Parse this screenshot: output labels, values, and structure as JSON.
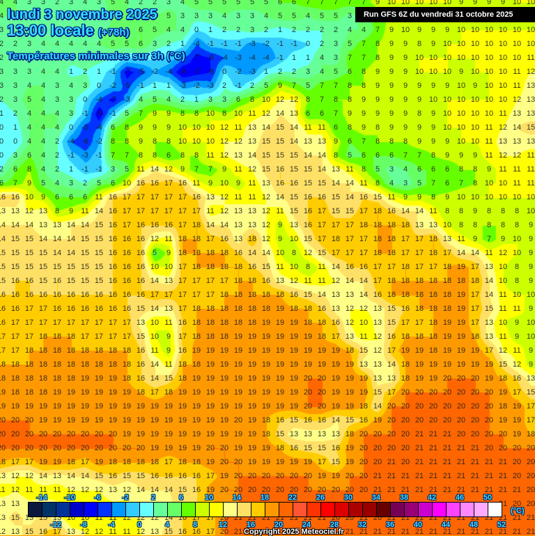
{
  "header": {
    "date": "lundi 3 novembre 2025",
    "time": "13:00 locale",
    "lead": "(+78h)",
    "parameter": "Températures minimales sur 3h (°C)",
    "run": "Run GFS 6Z du vendredi 31 octobre 2025"
  },
  "legend": {
    "unit": "(°C)",
    "colors": [
      "#0a1840",
      "#003366",
      "#003399",
      "#0000cc",
      "#0000ff",
      "#0033ff",
      "#0099ff",
      "#33ccff",
      "#66ffff",
      "#66ff99",
      "#66ff66",
      "#66ff00",
      "#ccff00",
      "#ffff00",
      "#ffff88",
      "#ffe066",
      "#ffcc00",
      "#ff9900",
      "#ff6600",
      "#ff5533",
      "#ff3300",
      "#ff0000",
      "#dd0000",
      "#aa0000",
      "#990000",
      "#660000",
      "#770055",
      "#990077",
      "#cc00cc",
      "#ff00ff",
      "#ff44ff",
      "#ff88ff",
      "#ffaaff",
      "#ffffff"
    ],
    "top_labels": [
      "-14",
      "-10",
      "-6",
      "-2",
      "2",
      "6",
      "10",
      "14",
      "18",
      "22",
      "26",
      "30",
      "34",
      "38",
      "42",
      "46",
      "50"
    ],
    "bottom_labels": [
      "-12",
      "-8",
      "-4",
      "0",
      "4",
      "8",
      "12",
      "16",
      "20",
      "24",
      "28",
      "32",
      "36",
      "40",
      "44",
      "48",
      "52"
    ]
  },
  "copyright": "Copyright 2025 Meteociel.fr",
  "grid_values": [
    [
      4,
      4,
      3,
      3,
      2,
      3,
      4,
      3,
      5,
      4,
      2,
      2,
      3,
      4,
      5,
      5,
      5,
      5,
      5,
      5,
      6,
      6,
      7,
      7,
      7,
      7,
      7,
      9,
      10,
      10,
      10,
      10,
      10,
      9,
      9,
      9,
      9,
      10,
      10
    ],
    [
      4,
      null,
      null,
      null,
      null,
      null,
      null,
      null,
      null,
      null,
      null,
      null,
      5,
      3,
      3,
      3,
      4,
      3,
      3,
      4,
      5,
      5,
      4,
      5,
      5,
      3,
      null,
      null,
      null,
      null,
      null,
      null,
      null,
      null,
      null,
      null,
      null,
      null,
      null
    ],
    [
      3,
      null,
      null,
      null,
      null,
      null,
      null,
      null,
      null,
      null,
      6,
      5,
      4,
      4,
      0,
      1,
      2,
      2,
      3,
      2,
      1,
      2,
      2,
      2,
      2,
      4,
      4,
      7,
      9,
      10,
      9,
      9,
      9,
      10,
      10,
      10,
      10,
      10,
      10
    ],
    [
      2,
      2,
      3,
      4,
      4,
      4,
      4,
      4,
      5,
      5,
      6,
      3,
      2,
      1,
      -4,
      -1,
      -1,
      -1,
      -3,
      -2,
      -1,
      -1,
      0,
      2,
      3,
      5,
      7,
      8,
      9,
      9,
      8,
      9,
      10,
      10,
      10,
      10,
      10,
      10,
      10
    ],
    [
      2,
      null,
      null,
      null,
      null,
      null,
      null,
      null,
      null,
      null,
      null,
      null,
      null,
      null,
      -7,
      -6,
      -4,
      -3,
      -4,
      -4,
      -1,
      1,
      1,
      4,
      3,
      7,
      7,
      8,
      9,
      9,
      10,
      10,
      10,
      10,
      10,
      10,
      10,
      10,
      11
    ],
    [
      3,
      3,
      3,
      4,
      4,
      1,
      2,
      1,
      -1,
      -7,
      -5,
      -2,
      -4,
      -8,
      -7,
      -6,
      0,
      -2,
      -3,
      1,
      2,
      2,
      3,
      4,
      5,
      6,
      8,
      9,
      9,
      9,
      10,
      10,
      10,
      9,
      10,
      10,
      10,
      11,
      12
    ],
    [
      3,
      3,
      4,
      4,
      3,
      4,
      3,
      0,
      -2,
      -5,
      -1,
      1,
      1,
      -3,
      -2,
      -3,
      2,
      -1,
      2,
      5,
      9,
      7,
      5,
      7,
      7,
      8,
      8,
      9,
      9,
      9,
      9,
      9,
      9,
      10,
      9,
      10,
      10,
      11,
      13
    ],
    [
      2,
      3,
      5,
      4,
      3,
      3,
      0,
      -4,
      -7,
      -3,
      4,
      5,
      4,
      2,
      1,
      3,
      3,
      6,
      8,
      10,
      12,
      12,
      8,
      7,
      8,
      8,
      9,
      9,
      9,
      9,
      9,
      10,
      10,
      10,
      10,
      10,
      10,
      12,
      13
    ],
    [
      1,
      2,
      4,
      4,
      4,
      3,
      -1,
      -8,
      -1,
      5,
      7,
      9,
      9,
      8,
      8,
      10,
      8,
      10,
      11,
      12,
      14,
      13,
      6,
      6,
      7,
      9,
      9,
      9,
      9,
      9,
      8,
      9,
      10,
      10,
      10,
      10,
      11,
      13,
      13
    ],
    [
      0,
      1,
      4,
      4,
      4,
      0,
      -5,
      -4,
      6,
      8,
      9,
      9,
      9,
      10,
      10,
      10,
      12,
      11,
      13,
      14,
      15,
      14,
      11,
      11,
      6,
      8,
      9,
      8,
      9,
      9,
      9,
      9,
      10,
      10,
      10,
      11,
      12,
      14,
      15
    ],
    [
      0,
      0,
      4,
      4,
      2,
      -4,
      -6,
      -2,
      8,
      8,
      9,
      8,
      8,
      10,
      10,
      10,
      12,
      12,
      13,
      15,
      15,
      14,
      13,
      13,
      9,
      6,
      7,
      8,
      8,
      8,
      9,
      9,
      9,
      10,
      10,
      11,
      13,
      13,
      13
    ],
    [
      0,
      3,
      6,
      4,
      2,
      -1,
      -3,
      -1,
      7,
      7,
      8,
      8,
      6,
      8,
      8,
      11,
      12,
      13,
      14,
      15,
      15,
      15,
      14,
      14,
      8,
      5,
      6,
      6,
      6,
      7,
      7,
      8,
      9,
      9,
      9,
      11,
      12,
      12,
      11
    ],
    [
      2,
      6,
      8,
      4,
      2,
      1,
      -1,
      -1,
      3,
      5,
      11,
      14,
      12,
      9,
      7,
      7,
      9,
      11,
      12,
      15,
      16,
      15,
      15,
      14,
      13,
      11,
      8,
      5,
      3,
      4,
      6,
      6,
      6,
      8,
      8,
      9,
      11,
      11,
      11
    ],
    [
      6,
      7,
      9,
      5,
      4,
      3,
      2,
      5,
      6,
      10,
      16,
      16,
      17,
      16,
      11,
      9,
      10,
      9,
      11,
      13,
      16,
      16,
      15,
      15,
      14,
      14,
      11,
      8,
      4,
      3,
      5,
      7,
      6,
      7,
      8,
      10,
      10,
      11,
      11
    ],
    [
      16,
      16,
      10,
      9,
      6,
      6,
      6,
      11,
      16,
      17,
      17,
      17,
      17,
      17,
      16,
      13,
      12,
      11,
      11,
      12,
      14,
      15,
      16,
      16,
      15,
      14,
      16,
      15,
      11,
      9,
      9,
      8,
      9,
      10,
      10,
      10,
      10,
      10,
      10
    ],
    [
      13,
      13,
      12,
      13,
      8,
      9,
      11,
      14,
      16,
      17,
      17,
      17,
      17,
      17,
      17,
      11,
      12,
      13,
      13,
      12,
      11,
      15,
      16,
      17,
      15,
      15,
      17,
      18,
      16,
      14,
      14,
      11,
      8,
      8,
      9,
      8,
      8,
      8,
      10
    ],
    [
      14,
      14,
      14,
      13,
      13,
      14,
      14,
      15,
      16,
      17,
      16,
      16,
      16,
      17,
      18,
      14,
      14,
      13,
      13,
      12,
      9,
      13,
      16,
      17,
      17,
      17,
      18,
      18,
      18,
      18,
      13,
      13,
      10,
      8,
      8,
      8,
      8,
      8,
      9
    ],
    [
      14,
      15,
      15,
      14,
      14,
      14,
      15,
      15,
      16,
      16,
      16,
      12,
      11,
      18,
      18,
      17,
      16,
      13,
      18,
      12,
      9,
      10,
      15,
      17,
      18,
      17,
      17,
      18,
      18,
      17,
      17,
      18,
      13,
      11,
      9,
      7,
      9,
      10,
      9
    ],
    [
      15,
      15,
      15,
      15,
      14,
      14,
      15,
      15,
      16,
      16,
      16,
      5,
      9,
      18,
      18,
      18,
      18,
      16,
      14,
      14,
      10,
      8,
      12,
      15,
      17,
      17,
      17,
      18,
      18,
      17,
      17,
      18,
      17,
      14,
      14,
      11,
      12,
      10,
      9
    ],
    [
      15,
      15,
      15,
      15,
      15,
      15,
      15,
      15,
      16,
      16,
      16,
      10,
      10,
      17,
      18,
      18,
      18,
      18,
      16,
      15,
      11,
      10,
      8,
      11,
      14,
      16,
      16,
      17,
      17,
      18,
      17,
      17,
      18,
      19,
      17,
      13,
      10,
      8,
      9
    ],
    [
      15,
      16,
      16,
      15,
      16,
      15,
      15,
      15,
      16,
      16,
      16,
      14,
      13,
      17,
      17,
      17,
      17,
      18,
      18,
      16,
      13,
      12,
      11,
      11,
      12,
      14,
      14,
      17,
      18,
      18,
      18,
      18,
      18,
      18,
      18,
      14,
      10,
      8,
      9
    ],
    [
      16,
      16,
      16,
      16,
      16,
      16,
      16,
      16,
      16,
      16,
      16,
      17,
      17,
      17,
      17,
      17,
      18,
      18,
      18,
      18,
      18,
      16,
      15,
      14,
      13,
      13,
      14,
      16,
      18,
      18,
      18,
      18,
      18,
      19,
      17,
      14,
      11,
      10,
      10
    ],
    [
      16,
      16,
      17,
      17,
      16,
      16,
      16,
      16,
      16,
      16,
      15,
      14,
      13,
      17,
      18,
      18,
      18,
      18,
      18,
      18,
      19,
      18,
      18,
      16,
      13,
      12,
      12,
      13,
      15,
      16,
      18,
      18,
      18,
      19,
      17,
      15,
      11,
      11,
      9
    ],
    [
      16,
      17,
      17,
      17,
      17,
      17,
      17,
      17,
      17,
      17,
      13,
      10,
      11,
      16,
      18,
      18,
      18,
      18,
      18,
      19,
      19,
      19,
      18,
      18,
      16,
      12,
      10,
      13,
      15,
      17,
      17,
      18,
      19,
      19,
      17,
      13,
      10,
      9,
      10
    ],
    [
      17,
      17,
      17,
      18,
      18,
      18,
      17,
      17,
      17,
      17,
      15,
      10,
      9,
      17,
      18,
      18,
      18,
      19,
      19,
      19,
      19,
      19,
      19,
      18,
      17,
      13,
      11,
      12,
      16,
      18,
      18,
      18,
      19,
      19,
      18,
      13,
      11,
      9,
      10
    ],
    [
      17,
      17,
      18,
      18,
      18,
      18,
      18,
      18,
      18,
      18,
      16,
      11,
      9,
      16,
      19,
      19,
      19,
      19,
      19,
      19,
      19,
      19,
      19,
      19,
      19,
      18,
      15,
      12,
      17,
      19,
      19,
      18,
      19,
      19,
      19,
      17,
      12,
      11,
      9
    ],
    [
      18,
      18,
      18,
      18,
      18,
      18,
      18,
      18,
      18,
      18,
      16,
      14,
      11,
      18,
      18,
      19,
      19,
      19,
      19,
      19,
      19,
      19,
      19,
      19,
      19,
      19,
      13,
      13,
      14,
      18,
      19,
      19,
      19,
      19,
      19,
      19,
      15,
      12,
      9
    ],
    [
      18,
      18,
      18,
      18,
      18,
      18,
      19,
      19,
      19,
      18,
      16,
      14,
      15,
      18,
      19,
      19,
      19,
      19,
      19,
      19,
      19,
      19,
      20,
      20,
      19,
      19,
      19,
      13,
      13,
      18,
      19,
      19,
      20,
      20,
      20,
      19,
      18,
      16,
      13
    ],
    [
      19,
      18,
      18,
      18,
      19,
      19,
      19,
      19,
      19,
      19,
      18,
      17,
      18,
      19,
      19,
      19,
      19,
      19,
      19,
      19,
      19,
      19,
      20,
      20,
      19,
      19,
      19,
      15,
      17,
      20,
      20,
      20,
      20,
      20,
      20,
      20,
      19,
      17,
      15
    ],
    [
      19,
      19,
      19,
      19,
      19,
      19,
      19,
      19,
      19,
      19,
      19,
      19,
      19,
      19,
      19,
      19,
      19,
      19,
      19,
      19,
      19,
      19,
      20,
      20,
      19,
      19,
      18,
      14,
      20,
      20,
      20,
      20,
      20,
      20,
      20,
      20,
      18,
      19,
      17
    ],
    [
      20,
      20,
      20,
      19,
      19,
      19,
      19,
      19,
      19,
      19,
      19,
      19,
      19,
      19,
      19,
      19,
      19,
      20,
      19,
      18,
      16,
      15,
      16,
      16,
      14,
      15,
      16,
      19,
      20,
      20,
      20,
      20,
      20,
      20,
      20,
      20,
      19,
      19,
      17
    ],
    [
      20,
      20,
      20,
      20,
      20,
      20,
      20,
      20,
      20,
      19,
      19,
      19,
      19,
      19,
      19,
      19,
      19,
      19,
      19,
      18,
      15,
      13,
      13,
      13,
      13,
      18,
      20,
      20,
      20,
      20,
      21,
      21,
      21,
      20,
      20,
      20,
      20,
      19,
      18
    ],
    [
      20,
      20,
      20,
      20,
      20,
      20,
      20,
      20,
      20,
      20,
      20,
      19,
      19,
      19,
      19,
      20,
      20,
      19,
      19,
      19,
      18,
      16,
      15,
      15,
      16,
      19,
      20,
      20,
      20,
      20,
      21,
      21,
      21,
      21,
      21,
      20,
      20,
      20,
      20
    ],
    [
      18,
      17,
      17,
      19,
      19,
      18,
      17,
      19,
      18,
      18,
      18,
      18,
      17,
      18,
      18,
      19,
      20,
      20,
      19,
      19,
      19,
      19,
      19,
      17,
      15,
      19,
      20,
      20,
      21,
      20,
      21,
      21,
      21,
      21,
      21,
      21,
      21,
      20,
      20
    ],
    [
      13,
      12,
      12,
      14,
      13,
      14,
      14,
      15,
      16,
      15,
      15,
      16,
      16,
      16,
      16,
      17,
      19,
      20,
      20,
      20,
      20,
      20,
      20,
      19,
      19,
      20,
      20,
      21,
      21,
      21,
      21,
      21,
      21,
      21,
      21,
      21,
      21,
      20,
      20
    ],
    [
      11,
      12,
      11,
      11,
      11,
      12,
      12,
      12,
      13,
      12,
      14,
      14,
      14,
      15,
      16,
      19,
      20,
      20,
      20,
      20,
      20,
      20,
      20,
      20,
      20,
      20,
      20,
      21,
      21,
      21,
      21,
      21,
      21,
      21,
      21,
      21,
      21,
      21,
      20
    ],
    [
      13,
      13,
      null,
      null,
      null,
      null,
      null,
      null,
      null,
      null,
      null,
      null,
      null,
      null,
      null,
      null,
      null,
      null,
      null,
      null,
      null,
      null,
      null,
      null,
      null,
      null,
      null,
      null,
      null,
      null,
      null,
      null,
      null,
      null,
      null,
      null,
      21,
      20,
      20
    ],
    [
      13,
      15,
      13,
      15,
      13,
      10,
      10,
      11,
      11,
      12,
      12,
      12,
      14,
      16,
      17,
      17,
      20,
      21,
      21,
      21,
      21,
      21,
      21,
      21,
      20,
      20,
      21,
      20,
      21,
      21,
      21,
      21,
      21,
      21,
      21,
      21,
      21,
      21,
      21
    ],
    [
      12,
      13,
      15,
      16,
      17,
      13,
      12,
      12,
      11,
      11,
      12,
      13,
      15,
      16,
      16,
      17,
      20,
      21,
      null,
      null,
      null,
      null,
      null,
      null,
      null,
      21,
      21,
      21,
      21,
      21,
      21,
      21,
      21,
      21,
      21,
      21,
      21,
      21,
      21
    ]
  ]
}
